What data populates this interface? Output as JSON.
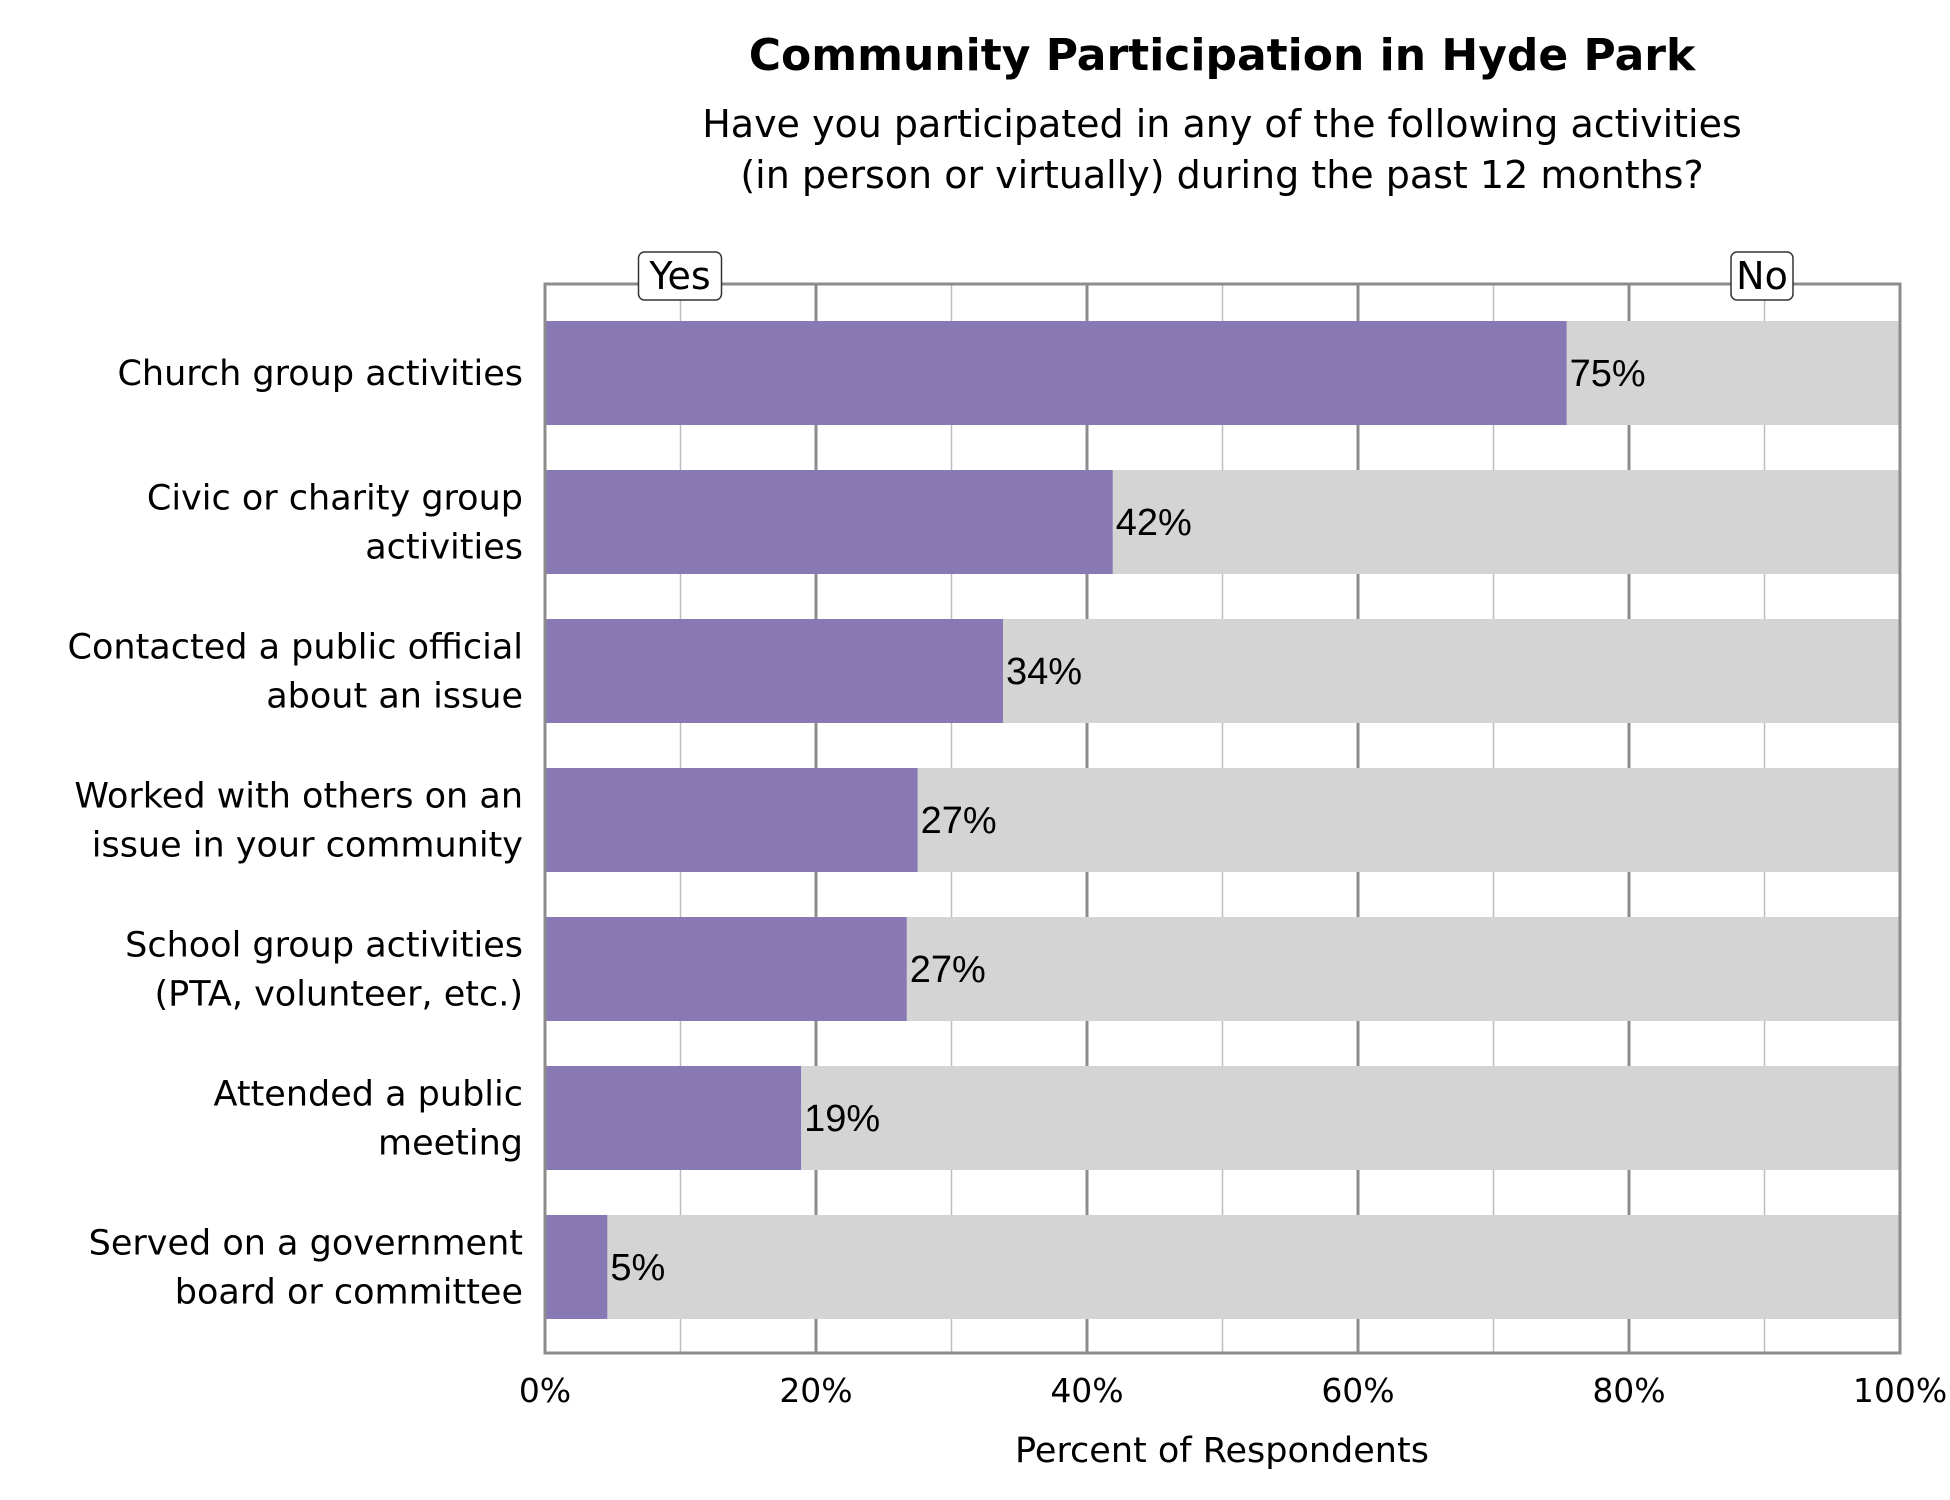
{
  "chart_data": {
    "type": "bar",
    "orientation": "horizontal",
    "stacked": true,
    "title": "Community Participation in Hyde Park",
    "subtitle_lines": [
      "Have you participated in any of the following activities",
      "(in person or virtually) during the past 12 months?"
    ],
    "xlabel": "Percent of Respondents",
    "ylabel": "",
    "xlim": [
      0,
      100
    ],
    "x_ticks": [
      "0%",
      "20%",
      "40%",
      "60%",
      "80%",
      "100%"
    ],
    "grid": true,
    "legend_placement": "top",
    "categories": [
      [
        "Church group activities"
      ],
      [
        "Civic or charity group",
        "activities"
      ],
      [
        "Contacted a public official",
        "about an issue"
      ],
      [
        "Worked with others on an",
        "issue in your community"
      ],
      [
        "School group activities",
        "(PTA, volunteer, etc.)"
      ],
      [
        "Attended a public",
        "meeting"
      ],
      [
        "Served on a government",
        "board or committee"
      ]
    ],
    "series": [
      {
        "name": "Yes",
        "color": "#8879b5",
        "values": [
          75.4,
          41.9,
          33.8,
          27.5,
          26.7,
          18.9,
          4.6
        ],
        "labels": [
          "75%",
          "42%",
          "34%",
          "27%",
          "27%",
          "19%",
          "5%"
        ]
      },
      {
        "name": "No",
        "color": "#d4d4d4",
        "values": [
          24.6,
          58.1,
          66.2,
          72.5,
          73.3,
          81.1,
          95.4
        ]
      }
    ]
  }
}
